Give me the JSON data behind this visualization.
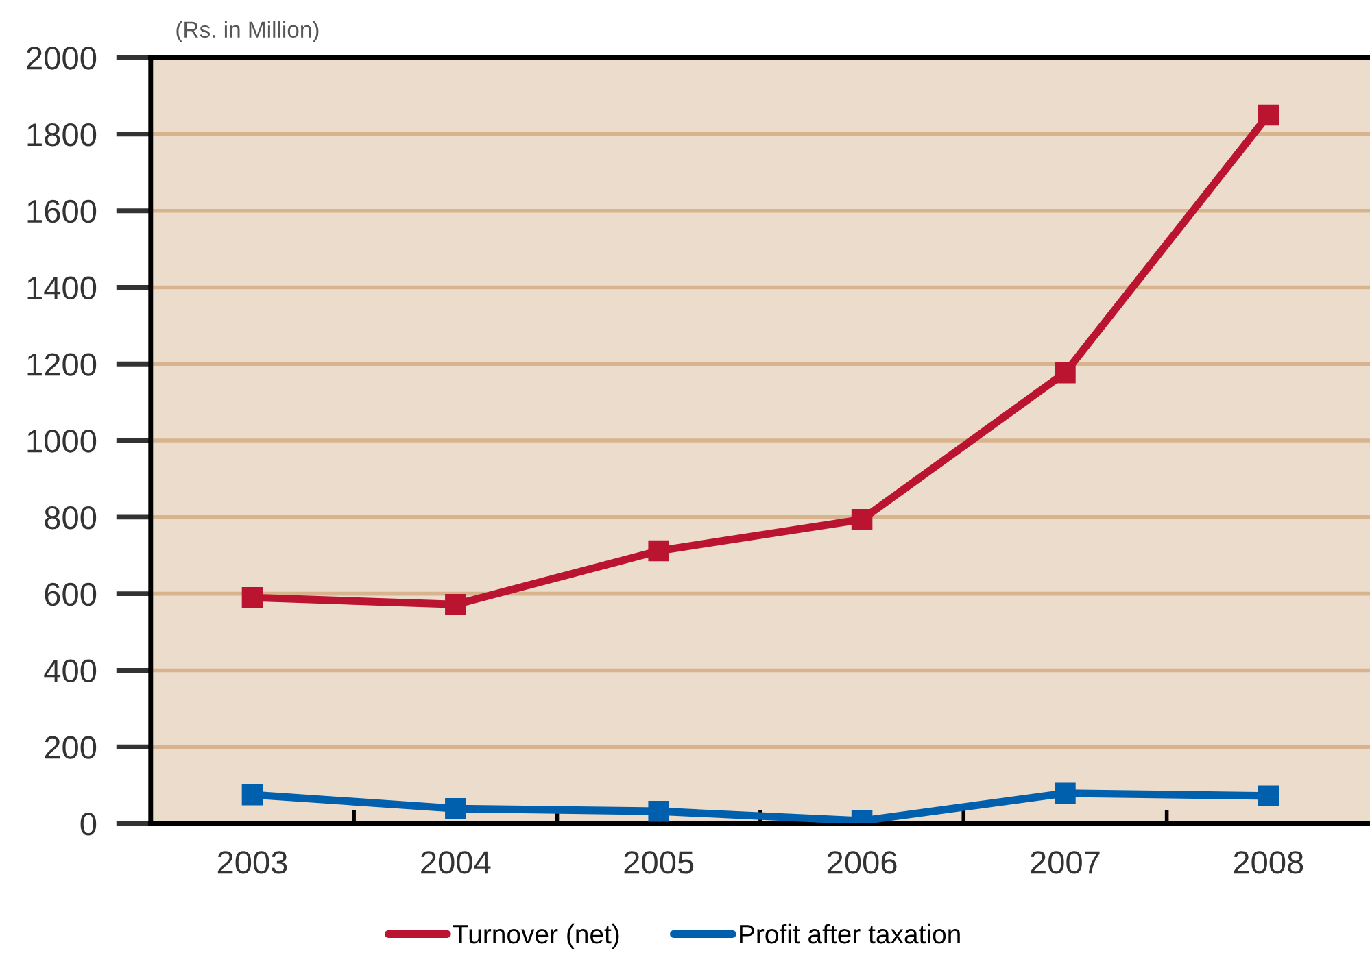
{
  "chart_data": {
    "type": "line",
    "ylabel": "(Rs. in Million)",
    "categories": [
      "2003",
      "2004",
      "2005",
      "2006",
      "2007",
      "2008"
    ],
    "series": [
      {
        "name": "Turnover (net)",
        "color": "#bb1431",
        "values": [
          590,
          572,
          712,
          794,
          1177,
          1850
        ]
      },
      {
        "name": "Profit after taxation",
        "color": "#0060ad",
        "values": [
          75,
          39,
          32,
          7,
          79,
          72
        ]
      }
    ],
    "ylim": [
      0,
      2000
    ],
    "yticks": [
      0,
      200,
      400,
      600,
      800,
      1000,
      1200,
      1400,
      1600,
      1800,
      2000
    ],
    "grid": "y",
    "legend": "bottom",
    "marker": "square",
    "line_style": "solid"
  }
}
